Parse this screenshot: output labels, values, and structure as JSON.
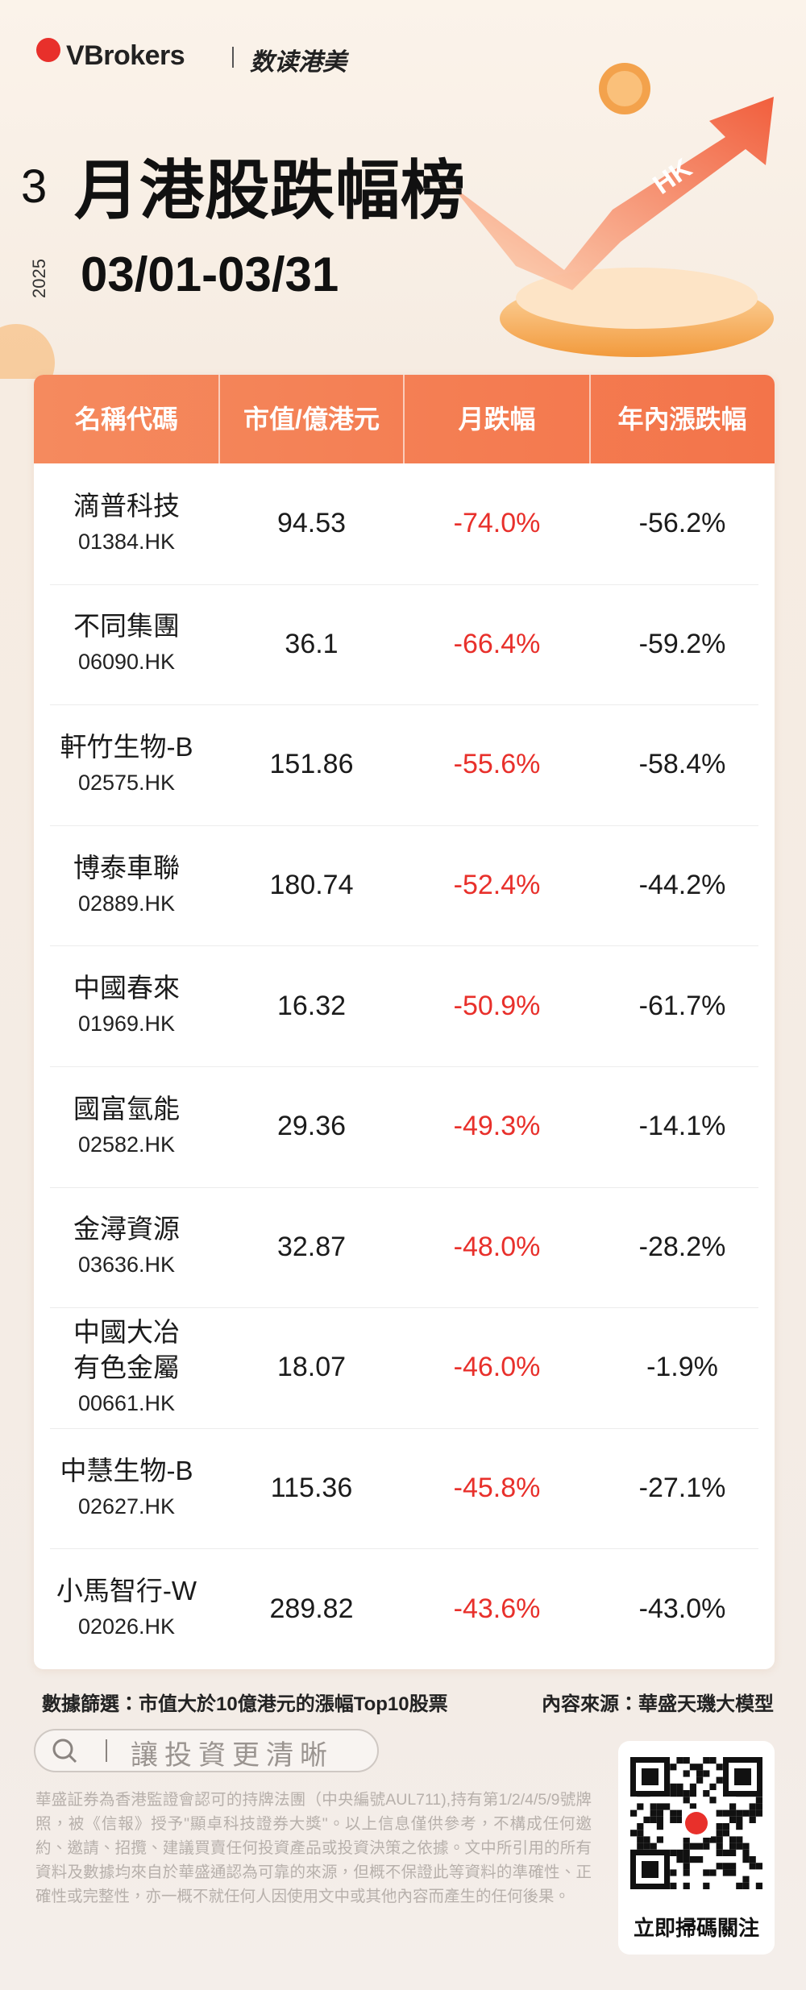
{
  "header": {
    "brand": "VBrokers",
    "brand_sub": "数读港美",
    "badge": "HK",
    "month": "3",
    "title": "月港股跌幅榜",
    "year": "2025",
    "date_range": "03/01-03/31"
  },
  "table": {
    "columns": [
      "名稱代碼",
      "市值/億港元",
      "月跌幅",
      "年內漲跌幅"
    ],
    "rows": [
      {
        "name": "滴普科技",
        "code": "01384.HK",
        "market_cap": "94.53",
        "monthly_change": "-74.0%",
        "ytd_change": "-56.2%"
      },
      {
        "name": "不同集團",
        "code": "06090.HK",
        "market_cap": "36.1",
        "monthly_change": "-66.4%",
        "ytd_change": "-59.2%"
      },
      {
        "name": "軒竹生物-B",
        "code": "02575.HK",
        "market_cap": "151.86",
        "monthly_change": "-55.6%",
        "ytd_change": "-58.4%"
      },
      {
        "name": "博泰車聯",
        "code": "02889.HK",
        "market_cap": "180.74",
        "monthly_change": "-52.4%",
        "ytd_change": "-44.2%"
      },
      {
        "name": "中國春來",
        "code": "01969.HK",
        "market_cap": "16.32",
        "monthly_change": "-50.9%",
        "ytd_change": "-61.7%"
      },
      {
        "name": "國富氫能",
        "code": "02582.HK",
        "market_cap": "29.36",
        "monthly_change": "-49.3%",
        "ytd_change": "-14.1%"
      },
      {
        "name": "金潯資源",
        "code": "03636.HK",
        "market_cap": "32.87",
        "monthly_change": "-48.0%",
        "ytd_change": "-28.2%"
      },
      {
        "name": "中國大冶\n有色金屬",
        "code": "00661.HK",
        "market_cap": "18.07",
        "monthly_change": "-46.0%",
        "ytd_change": "-1.9%"
      },
      {
        "name": "中慧生物-B",
        "code": "02627.HK",
        "market_cap": "115.36",
        "monthly_change": "-45.8%",
        "ytd_change": "-27.1%"
      },
      {
        "name": "小馬智行-W",
        "code": "02026.HK",
        "market_cap": "289.82",
        "monthly_change": "-43.6%",
        "ytd_change": "-43.0%"
      }
    ]
  },
  "footer": {
    "filter": "數據篩選：市值大於10億港元的漲幅Top10股票",
    "source": "內容來源：華盛天璣大模型",
    "search": "讓投資更清晰",
    "disclaimer": "華盛証券為香港監證會認可的持牌法團（中央編號AUL711),持有第1/2/4/5/9號牌照，被《信報》授予\"顯卓科技證券大獎\"。以上信息僅供參考，不構成任何邀約、邀請、招攬、建議買賣任何投資產品或投資決策之依據。文中所引用的所有資料及數據均來自於華盛通認為可靠的來源，但概不保證此等資料的準確性、正確性或完整性，亦一概不就任何人因使用文中或其他內容而產生的任何後果。",
    "qr_caption": "立即掃碼關注"
  }
}
